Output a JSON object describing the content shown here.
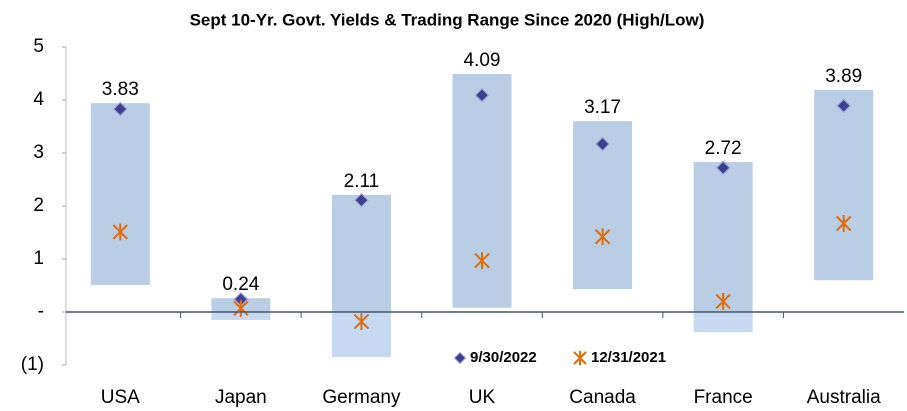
{
  "chart_data": {
    "type": "range",
    "title": "Sept 10-Yr. Govt. Yields & Trading Range Since 2020 (High/Low)",
    "categories": [
      "USA",
      "Japan",
      "Germany",
      "UK",
      "Canada",
      "France",
      "Australia"
    ],
    "range": {
      "color": "#b9cde5",
      "color_below_zero": "#c6d9f0",
      "high": [
        3.94,
        0.26,
        2.21,
        4.49,
        3.6,
        2.83,
        4.19
      ],
      "low": [
        0.51,
        -0.15,
        -0.85,
        0.08,
        0.43,
        -0.38,
        0.6
      ]
    },
    "series": [
      {
        "name": "9/30/2022",
        "color": "#3f3f8f",
        "marker": "diamond",
        "values": [
          3.83,
          0.24,
          2.11,
          4.09,
          3.17,
          2.72,
          3.89
        ]
      },
      {
        "name": "12/31/2021",
        "color": "#e36c09",
        "marker": "asterisk",
        "values": [
          1.51,
          0.07,
          -0.18,
          0.97,
          1.42,
          0.2,
          1.67
        ]
      }
    ],
    "ylim": [
      -1,
      5
    ],
    "yticks": [
      {
        "value": -1,
        "label": "(1)"
      },
      {
        "value": 0,
        "label": "-"
      },
      1,
      2,
      3,
      4,
      5
    ],
    "grid": false
  }
}
